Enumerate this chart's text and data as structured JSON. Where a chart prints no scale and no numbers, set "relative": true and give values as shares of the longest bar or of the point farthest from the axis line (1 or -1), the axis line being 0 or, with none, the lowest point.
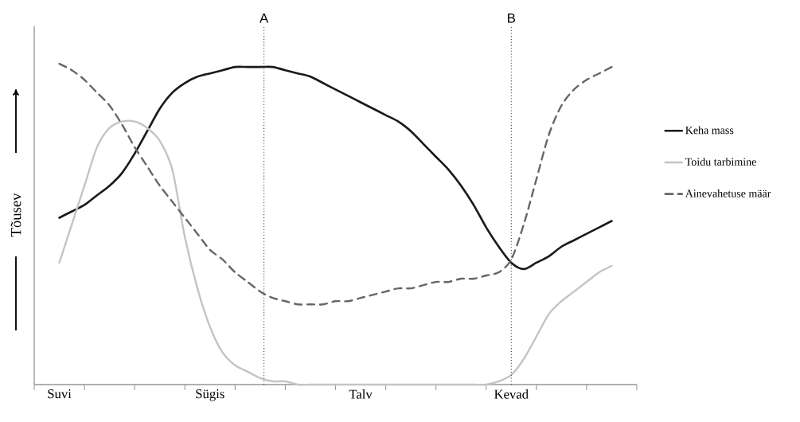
{
  "chart_data": {
    "type": "line",
    "relative": true,
    "ylabel": "Tõusev",
    "legend": "right",
    "categories": [
      "Suvi",
      null,
      null,
      null,
      null,
      null,
      null,
      null,
      null,
      null,
      null,
      null,
      "Sügis",
      null,
      null,
      null,
      null,
      null,
      null,
      null,
      null,
      null,
      null,
      null,
      "Talv",
      null,
      null,
      null,
      null,
      null,
      null,
      null,
      null,
      null,
      null,
      null,
      "Kevad",
      null,
      null,
      null,
      null,
      null,
      null,
      null,
      null
    ],
    "annotations": [
      "A"
    ],
    "ref_lines": [
      {
        "axis": "x",
        "value": "Kevad",
        "label": "B",
        "color": "#333333",
        "line_style": "dotted"
      }
    ],
    "series": [
      {
        "name": "Keha mass",
        "color": "#1a1a1a",
        "line_style": "solid",
        "values": [
          0.52,
          0.54,
          0.56,
          0.59,
          0.62,
          0.66,
          0.72,
          0.79,
          0.86,
          0.91,
          0.94,
          0.96,
          0.97,
          0.98,
          0.99,
          0.99,
          0.99,
          0.99,
          0.98,
          0.97,
          0.96,
          0.94,
          0.92,
          0.9,
          0.88,
          0.86,
          0.84,
          0.82,
          0.79,
          0.75,
          0.71,
          0.67,
          0.62,
          0.56,
          0.49,
          0.43,
          0.38,
          0.36,
          0.38,
          0.4,
          0.43,
          0.45,
          0.47,
          0.49,
          0.51
        ]
      },
      {
        "name": "Toidu tarbimine",
        "color": "#c4c4c4",
        "line_style": "solid",
        "values": [
          0.38,
          0.5,
          0.62,
          0.74,
          0.8,
          0.82,
          0.82,
          0.8,
          0.76,
          0.67,
          0.46,
          0.3,
          0.18,
          0.1,
          0.06,
          0.04,
          0.02,
          0.01,
          0.01,
          0,
          0,
          0,
          0,
          0,
          0,
          0,
          0,
          0,
          0,
          0,
          0,
          0,
          0,
          0,
          0,
          0.01,
          0.03,
          0.08,
          0.15,
          0.22,
          0.26,
          0.29,
          0.32,
          0.35,
          0.37
        ]
      },
      {
        "name": "Ainevahetuse määr",
        "color": "#666666",
        "line_style": "dashed",
        "values": [
          1.0,
          0.98,
          0.95,
          0.91,
          0.87,
          0.81,
          0.74,
          0.68,
          0.62,
          0.57,
          0.52,
          0.47,
          0.42,
          0.39,
          0.35,
          0.32,
          0.29,
          0.27,
          0.26,
          0.25,
          0.25,
          0.25,
          0.26,
          0.26,
          0.27,
          0.28,
          0.29,
          0.3,
          0.3,
          0.31,
          0.32,
          0.32,
          0.33,
          0.33,
          0.34,
          0.35,
          0.39,
          0.5,
          0.64,
          0.78,
          0.87,
          0.92,
          0.95,
          0.97,
          0.99
        ]
      }
    ]
  }
}
